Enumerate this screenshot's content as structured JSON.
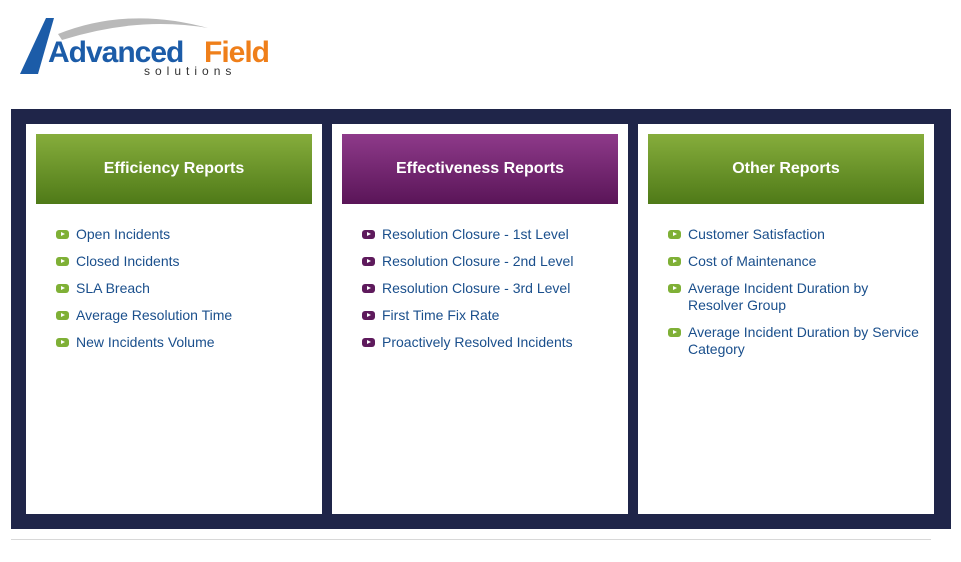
{
  "logo": {
    "part1": "Advanced",
    "part2": "Field",
    "tagline": "solutions"
  },
  "colors": {
    "frame": "#1f2549",
    "green_header": "#6a9528",
    "purple_header": "#7a2a76",
    "link": "#1a4f8c",
    "logo_blue": "#1c5ca8",
    "logo_orange": "#ef7f1a"
  },
  "panels": [
    {
      "title": "Efficiency Reports",
      "bullet_icon": "arrow-bullet-green",
      "items": [
        "Open Incidents",
        "Closed Incidents",
        "SLA Breach",
        "Average Resolution Time",
        "New Incidents Volume"
      ]
    },
    {
      "title": "Effectiveness Reports",
      "bullet_icon": "arrow-bullet-purple",
      "items": [
        "Resolution Closure - 1st Level",
        "Resolution Closure - 2nd Level",
        "Resolution Closure - 3rd Level",
        "First Time Fix Rate",
        "Proactively Resolved Incidents"
      ]
    },
    {
      "title": "Other Reports",
      "bullet_icon": "arrow-bullet-green",
      "items": [
        "Customer Satisfaction",
        "Cost of Maintenance",
        "Average Incident Duration by Resolver Group",
        "Average Incident Duration by Service Category"
      ]
    }
  ]
}
